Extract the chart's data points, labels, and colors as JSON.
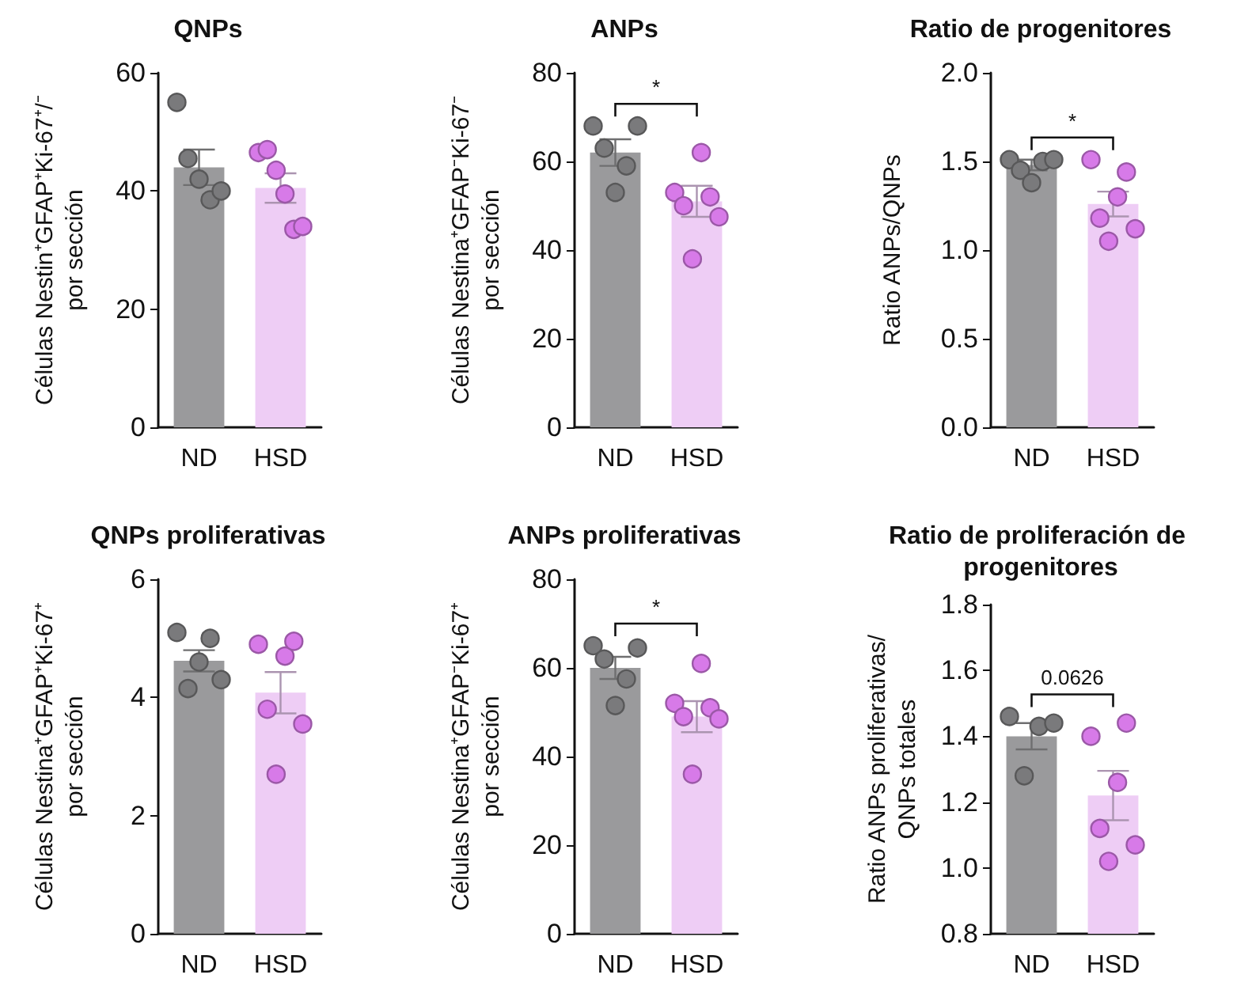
{
  "chart_data": [
    {
      "type": "bar",
      "title": "QNPs",
      "ylabel": "Células Nestin⁺GFAP⁺Ki-67⁺/⁻\npor sección",
      "categories": [
        "ND",
        "HSD"
      ],
      "ylim": [
        0,
        60
      ],
      "yticks": [
        0,
        20,
        40,
        60
      ],
      "series": [
        {
          "type": "bar",
          "colors": [
            "#9a9a9c",
            "#eecdf5"
          ],
          "values": [
            44,
            40.5
          ],
          "errors": [
            3,
            2.5
          ]
        },
        {
          "type": "scatter",
          "color": "#7a7a7c",
          "x": [
            "ND",
            "ND",
            "ND",
            "ND",
            "ND"
          ],
          "values": [
            55,
            45.5,
            42,
            38.5,
            40
          ]
        },
        {
          "type": "scatter",
          "color": "#d77ae8",
          "x": [
            "HSD",
            "HSD",
            "HSD",
            "HSD",
            "HSD",
            "HSD"
          ],
          "values": [
            46.5,
            47,
            43.5,
            39.5,
            33.5,
            34
          ]
        }
      ]
    },
    {
      "type": "bar",
      "title": "ANPs",
      "ylabel": "Células Nestina⁺GFAP⁻Ki-67⁻\npor sección",
      "categories": [
        "ND",
        "HSD"
      ],
      "ylim": [
        0,
        80
      ],
      "yticks": [
        0,
        20,
        40,
        60,
        80
      ],
      "annotations": [
        "*"
      ],
      "series": [
        {
          "type": "bar",
          "colors": [
            "#9a9a9c",
            "#eecdf5"
          ],
          "values": [
            62,
            51
          ],
          "errors": [
            3,
            3.5
          ]
        },
        {
          "type": "scatter",
          "color": "#7a7a7c",
          "x": [
            "ND",
            "ND",
            "ND",
            "ND",
            "ND"
          ],
          "values": [
            68,
            63,
            53,
            59,
            68
          ]
        },
        {
          "type": "scatter",
          "color": "#d77ae8",
          "x": [
            "HSD",
            "HSD",
            "HSD",
            "HSD",
            "HSD",
            "HSD"
          ],
          "values": [
            53,
            50,
            38,
            62,
            52,
            47.5
          ]
        }
      ]
    },
    {
      "type": "bar",
      "title": "Ratio de progenitores",
      "ylabel": "Ratio ANPs/QNPs",
      "categories": [
        "ND",
        "HSD"
      ],
      "ylim": [
        0,
        2
      ],
      "yticks": [
        {
          "value": 0,
          "label": "0.0"
        },
        {
          "value": 0.5,
          "label": "0.5"
        },
        {
          "value": 1,
          "label": "1.0"
        },
        {
          "value": 1.5,
          "label": "1.5"
        },
        {
          "value": 2,
          "label": "2.0"
        }
      ],
      "annotations": [
        "*"
      ],
      "series": [
        {
          "type": "bar",
          "colors": [
            "#9a9a9c",
            "#eecdf5"
          ],
          "values": [
            1.48,
            1.26
          ],
          "errors": [
            0.03,
            0.07
          ]
        },
        {
          "type": "scatter",
          "color": "#7a7a7c",
          "x": [
            "ND",
            "ND",
            "ND",
            "ND",
            "ND"
          ],
          "values": [
            1.51,
            1.45,
            1.38,
            1.5,
            1.51
          ]
        },
        {
          "type": "scatter",
          "color": "#d77ae8",
          "x": [
            "HSD",
            "HSD",
            "HSD",
            "HSD",
            "HSD",
            "HSD"
          ],
          "values": [
            1.51,
            1.18,
            1.05,
            1.3,
            1.44,
            1.12
          ]
        }
      ]
    },
    {
      "type": "bar",
      "title": "QNPs proliferativas",
      "ylabel": "Células Nestina⁺GFAP⁺Ki-67⁺\npor sección",
      "categories": [
        "ND",
        "HSD"
      ],
      "ylim": [
        0,
        6
      ],
      "yticks": [
        0,
        2,
        4,
        6
      ],
      "series": [
        {
          "type": "bar",
          "colors": [
            "#9a9a9c",
            "#eecdf5"
          ],
          "values": [
            4.62,
            4.08
          ],
          "errors": [
            0.18,
            0.35
          ]
        },
        {
          "type": "scatter",
          "color": "#7a7a7c",
          "x": [
            "ND",
            "ND",
            "ND",
            "ND",
            "ND"
          ],
          "values": [
            5.1,
            4.15,
            4.6,
            5.0,
            4.3
          ]
        },
        {
          "type": "scatter",
          "color": "#d77ae8",
          "x": [
            "HSD",
            "HSD",
            "HSD",
            "HSD",
            "HSD",
            "HSD"
          ],
          "values": [
            4.9,
            3.8,
            2.7,
            4.7,
            4.95,
            3.55
          ]
        }
      ]
    },
    {
      "type": "bar",
      "title": "ANPs proliferativas",
      "ylabel": "Células Nestina⁺GFAP⁻Ki-67⁺\npor sección",
      "categories": [
        "ND",
        "HSD"
      ],
      "ylim": [
        0,
        80
      ],
      "yticks": [
        0,
        20,
        40,
        60,
        80
      ],
      "annotations": [
        "*"
      ],
      "series": [
        {
          "type": "bar",
          "colors": [
            "#9a9a9c",
            "#eecdf5"
          ],
          "values": [
            60,
            49
          ],
          "errors": [
            2.5,
            3.5
          ]
        },
        {
          "type": "scatter",
          "color": "#7a7a7c",
          "x": [
            "ND",
            "ND",
            "ND",
            "ND",
            "ND"
          ],
          "values": [
            65,
            62,
            51.5,
            57.5,
            64.5
          ]
        },
        {
          "type": "scatter",
          "color": "#d77ae8",
          "x": [
            "HSD",
            "HSD",
            "HSD",
            "HSD",
            "HSD",
            "HSD"
          ],
          "values": [
            52,
            49,
            36,
            61,
            51,
            48.5
          ]
        }
      ]
    },
    {
      "type": "bar",
      "title": "Ratio de proliferación de progenitores",
      "ylabel": "Ratio ANPs proliferativas/\nQNPs totales",
      "categories": [
        "ND",
        "HSD"
      ],
      "ylim": [
        0.8,
        1.8
      ],
      "yticks": [
        {
          "value": 0.8,
          "label": "0.8"
        },
        {
          "value": 1,
          "label": "1.0"
        },
        {
          "value": 1.2,
          "label": "1.2"
        },
        {
          "value": 1.4,
          "label": "1.4"
        },
        {
          "value": 1.6,
          "label": "1.6"
        },
        {
          "value": 1.8,
          "label": "1.8"
        }
      ],
      "annotations": [
        "0.0626"
      ],
      "series": [
        {
          "type": "bar",
          "colors": [
            "#9a9a9c",
            "#eecdf5"
          ],
          "values": [
            1.4,
            1.22
          ],
          "errors": [
            0.04,
            0.075
          ]
        },
        {
          "type": "scatter",
          "color": "#7a7a7c",
          "x": [
            "ND",
            "ND",
            "ND",
            "ND"
          ],
          "values": [
            1.46,
            1.28,
            1.43,
            1.44
          ]
        },
        {
          "type": "scatter",
          "color": "#d77ae8",
          "x": [
            "HSD",
            "HSD",
            "HSD",
            "HSD",
            "HSD",
            "HSD"
          ],
          "values": [
            1.4,
            1.12,
            1.02,
            1.26,
            1.44,
            1.07
          ]
        }
      ]
    }
  ]
}
